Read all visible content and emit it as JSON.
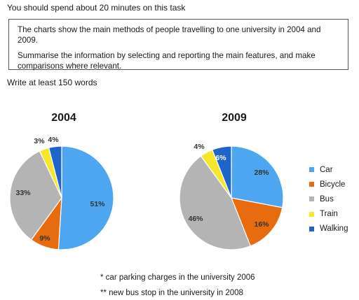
{
  "header": {
    "intro": "You should spend about 20 minutes on this task",
    "task_line1": "The charts show the main methods of people travelling to one university in 2004 and 2009.",
    "task_line2": "Summarise the information by selecting and reporting the main features, and make comparisons where relevant.",
    "word_count": "Write at least 150 words"
  },
  "chart_data": [
    {
      "type": "pie",
      "title": "2004",
      "categories": [
        "Car",
        "Bicycle",
        "Bus",
        "Train",
        "Walking"
      ],
      "values": [
        51,
        9,
        33,
        3,
        4
      ],
      "labels": [
        "51%",
        "9%",
        "33%",
        "3%",
        "4%"
      ]
    },
    {
      "type": "pie",
      "title": "2009",
      "categories": [
        "Car",
        "Bicycle",
        "Bus",
        "Train",
        "Walking"
      ],
      "values": [
        28,
        16,
        46,
        4,
        6
      ],
      "labels": [
        "28%",
        "16%",
        "46%",
        "4%",
        "6%"
      ]
    }
  ],
  "legend": {
    "placement": "right",
    "items": [
      {
        "label": "Car",
        "color": "#4da6ef"
      },
      {
        "label": "Bicycle",
        "color": "#e66c0f"
      },
      {
        "label": "Bus",
        "color": "#b4b4b4"
      },
      {
        "label": "Train",
        "color": "#f4e72c"
      },
      {
        "label": "Walking",
        "color": "#1f64c8"
      }
    ]
  },
  "footnotes": {
    "note1": "* car parking charges in the university 2006",
    "note2": "** new bus stop in the university in 2008"
  }
}
